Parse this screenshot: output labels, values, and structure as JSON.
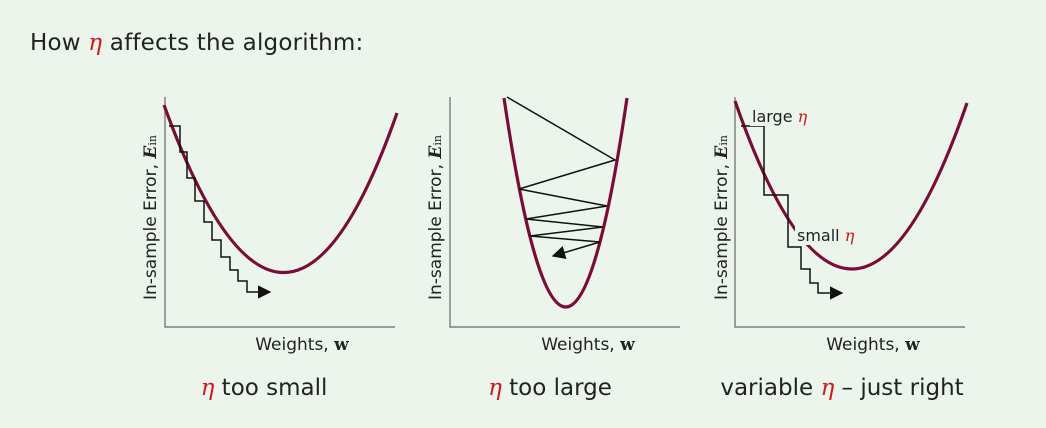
{
  "heading": {
    "prefix": "How ",
    "symbol": "η",
    "suffix": " affects the algorithm:"
  },
  "axis": {
    "xlabel_text": "Weights,",
    "xlabel_symbol": "w",
    "ylabel_text": "In-sample Error,",
    "ylabel_symbol": "E",
    "ylabel_subscript": "in"
  },
  "panels": [
    {
      "caption_symbol": "η",
      "caption_text": " too small"
    },
    {
      "caption_symbol": "η",
      "caption_text": " too large"
    },
    {
      "caption_prefix": "variable ",
      "caption_symbol": "η",
      "caption_text": " – just right"
    }
  ],
  "annotations": {
    "large_text": "large ",
    "large_symbol": "η",
    "small_text": "small ",
    "small_symbol": "η"
  },
  "colors": {
    "curve": "#7a0c3a",
    "steps": "#111111",
    "axes": "#666666",
    "symbol": "#d01818",
    "background": "#ecf5ec"
  }
}
